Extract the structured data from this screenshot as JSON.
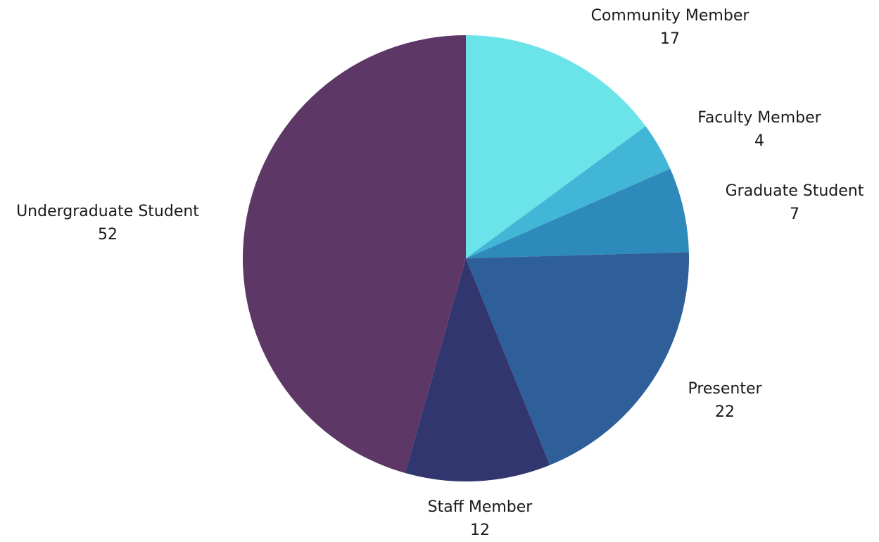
{
  "chart_data": {
    "type": "pie",
    "title": "",
    "slices": [
      {
        "label": "Community Member",
        "value": 17,
        "color": "#6ae4e8"
      },
      {
        "label": "Faculty Member",
        "value": 4,
        "color": "#42b6d6"
      },
      {
        "label": "Graduate Student",
        "value": 7,
        "color": "#2e8aba"
      },
      {
        "label": "Presenter",
        "value": 22,
        "color": "#2f5f99"
      },
      {
        "label": "Staff Member",
        "value": 12,
        "color": "#31366e"
      },
      {
        "label": "Undergraduate Student",
        "value": 52,
        "color": "#5d3766"
      }
    ],
    "start_angle_deg": 0,
    "direction": "clockwise",
    "legend": "none",
    "data_labels": "outside"
  }
}
